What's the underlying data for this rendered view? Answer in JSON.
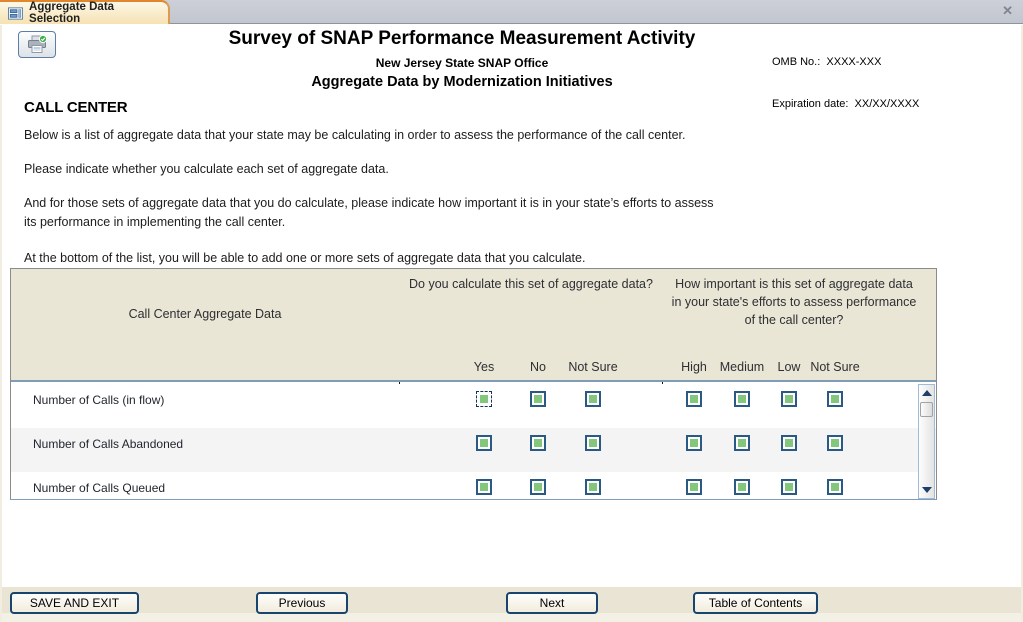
{
  "window": {
    "tab_title": "Aggregate Data Selection",
    "close_label": "✕"
  },
  "header": {
    "title": "Survey of SNAP Performance Measurement Activity",
    "subtitle": "New Jersey State SNAP Office",
    "subtitle2": "Aggregate Data by Modernization Initiatives",
    "omb_no": "OMB No.:  XXXX-XXX",
    "expiration_date": "Expiration date:  XX/XX/XXXX"
  },
  "section": {
    "heading": "CALL CENTER",
    "p1": "Below is a list of aggregate data that your state may be calculating in order to assess the performance of the call center.",
    "p2": "Please indicate whether you calculate each set of aggregate data.",
    "p3_line1": "And for those sets of aggregate data that you do calculate, please indicate how important it is in your state’s efforts to assess",
    "p3_line2": "its performance in implementing the call center.",
    "p4": "At the bottom of the list, you will be able to add one or more sets of aggregate data that you calculate."
  },
  "table": {
    "col1_header": "Call Center Aggregate Data",
    "col2_header": "Do you calculate this set of aggregate data?",
    "col3_header": "How important is this set of aggregate data in your state's efforts to assess performance of the call center?",
    "calc_options": [
      "Yes",
      "No",
      "Not Sure"
    ],
    "importance_options": [
      "High",
      "Medium",
      "Low",
      "Not Sure"
    ],
    "rows": [
      {
        "label": "Number of Calls (in flow)"
      },
      {
        "label": "Number of Calls Abandoned"
      },
      {
        "label": "Number of Calls Queued"
      }
    ]
  },
  "footer": {
    "save_exit_label": "SAVE AND EXIT",
    "previous_label": "Previous",
    "next_label": "Next",
    "toc_label": "Table of Contents"
  },
  "colors": {
    "tab_accent": "#e0862c",
    "header_beige": "#eae6d5",
    "checkbox_green": "#82c77c",
    "checkbox_border": "#2a5a83",
    "divider_blue": "#7f9db9",
    "button_border": "#17456e"
  }
}
